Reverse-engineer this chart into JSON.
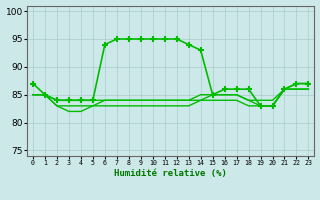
{
  "xlabel": "Humidité relative (%)",
  "background_color": "#cce8e8",
  "grid_color": "#aacccc",
  "line_color": "#00bb00",
  "xlim": [
    -0.5,
    23.5
  ],
  "ylim": [
    74,
    101
  ],
  "yticks": [
    75,
    80,
    85,
    90,
    95,
    100
  ],
  "xticks": [
    0,
    1,
    2,
    3,
    4,
    5,
    6,
    7,
    8,
    9,
    10,
    11,
    12,
    13,
    14,
    15,
    16,
    17,
    18,
    19,
    20,
    21,
    22,
    23
  ],
  "series": [
    {
      "x": [
        0,
        1,
        2,
        3,
        4,
        5,
        6,
        7,
        8,
        9,
        10,
        11,
        12,
        13,
        14,
        15,
        16,
        17,
        18,
        19,
        20,
        21,
        22,
        23
      ],
      "y": [
        87,
        85,
        84,
        84,
        84,
        84,
        94,
        95,
        95,
        95,
        95,
        95,
        95,
        94,
        93,
        85,
        86,
        86,
        86,
        83,
        83,
        86,
        87,
        87
      ],
      "marker": "+",
      "markersize": 4,
      "linewidth": 1.2
    },
    {
      "x": [
        0,
        1,
        2,
        3,
        4,
        5,
        6,
        7,
        8,
        9,
        10,
        11,
        12,
        13,
        14,
        15,
        16,
        17,
        18,
        19,
        20,
        21,
        22,
        23
      ],
      "y": [
        85,
        85,
        83,
        83,
        83,
        83,
        84,
        84,
        84,
        84,
        84,
        84,
        84,
        84,
        84,
        85,
        85,
        85,
        84,
        83,
        83,
        86,
        86,
        86
      ],
      "marker": null,
      "markersize": 0,
      "linewidth": 1.0
    },
    {
      "x": [
        0,
        1,
        2,
        3,
        4,
        5,
        6,
        7,
        8,
        9,
        10,
        11,
        12,
        13,
        14,
        15,
        16,
        17,
        18,
        19,
        20,
        21,
        22,
        23
      ],
      "y": [
        85,
        85,
        84,
        84,
        84,
        84,
        84,
        84,
        84,
        84,
        84,
        84,
        84,
        84,
        85,
        85,
        85,
        85,
        84,
        84,
        84,
        86,
        87,
        87
      ],
      "marker": null,
      "markersize": 0,
      "linewidth": 1.0
    },
    {
      "x": [
        0,
        1,
        2,
        3,
        4,
        5,
        6,
        7,
        8,
        9,
        10,
        11,
        12,
        13,
        14,
        15,
        16,
        17,
        18,
        19,
        20,
        21,
        22,
        23
      ],
      "y": [
        85,
        85,
        83,
        82,
        82,
        83,
        83,
        83,
        83,
        83,
        83,
        83,
        83,
        83,
        84,
        84,
        84,
        84,
        83,
        83,
        83,
        86,
        86,
        86
      ],
      "marker": null,
      "markersize": 0,
      "linewidth": 1.0
    }
  ]
}
